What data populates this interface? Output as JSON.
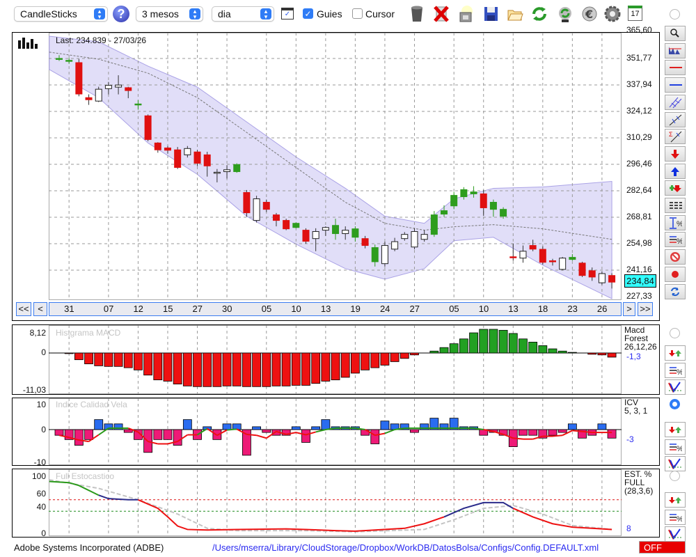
{
  "toolbar": {
    "chart_type": "CandleSticks",
    "period": "3 mesos",
    "interval": "dia",
    "guides_label": "Guies",
    "guides_checked": true,
    "cursor_label": "Cursor",
    "cursor_checked": false,
    "icons": [
      "trash-icon",
      "delete-icon",
      "print-icon",
      "save-icon",
      "open-folder-icon",
      "refresh-icon",
      "update-icon",
      "euro-icon",
      "settings-icon",
      "calendar-icon"
    ],
    "calendar_day": "17"
  },
  "main": {
    "last_label": "Last: 234.839 - 27/03/26",
    "y_ticks": [
      "365,60",
      "351,77",
      "337,94",
      "324,12",
      "310,29",
      "296,46",
      "282,64",
      "268,81",
      "254,98",
      "241,16",
      "227,33"
    ],
    "current_price": "234,84"
  },
  "nav": {
    "first": "<<",
    "prev": "<",
    "next": ">",
    "last": ">>"
  },
  "macd": {
    "title": "Histgrama MACD",
    "max": "8,12",
    "zero": "0",
    "min": "-11,03",
    "legend1": "Macd",
    "legend2": "Forest",
    "legend3": "26,12,26",
    "value": "-1,3"
  },
  "icv": {
    "title": "Indice Calidad Vela",
    "t1": "10",
    "t2": "0",
    "t3": "-10",
    "legend1": "ICV",
    "legend2": "5, 3, 1",
    "value": "-3"
  },
  "stoch": {
    "title": "Full Estocastico",
    "t1": "100",
    "t2": "60",
    "t3": "40",
    "t4": "0",
    "legend1": "EST. %",
    "legend2": "FULL",
    "legend3": "(28,3,6)",
    "value": "8"
  },
  "footer": {
    "company": "Adobe Systems Incorporated (ADBE)",
    "path": "/Users/mserra/Library/CloudStorage/Dropbox/WorkDB/DatosBolsa/Configs/Config.DEFAULT.xml",
    "off": "OFF"
  },
  "colors": {
    "up": "#2e9d1e",
    "down": "#e01010",
    "band": "#c9c3f2",
    "macd_neg": "#ee1111",
    "macd_pos": "#22a022",
    "icv_pos": "#2a6cf0",
    "icv_neg": "#ee1a77"
  },
  "chart_data": [
    {
      "type": "candlestick",
      "title": "CandleSticks",
      "ylim": [
        227.33,
        365.6
      ],
      "dates": [
        {
          "i": 1,
          "label": "31"
        },
        {
          "i": 5,
          "label": "07"
        },
        {
          "i": 8,
          "label": "12"
        },
        {
          "i": 11,
          "label": "15"
        },
        {
          "i": 14,
          "label": "27"
        },
        {
          "i": 17,
          "label": "30"
        },
        {
          "i": 21,
          "label": "05"
        },
        {
          "i": 24,
          "label": "10"
        },
        {
          "i": 27,
          "label": "13"
        },
        {
          "i": 30,
          "label": "19"
        },
        {
          "i": 33,
          "label": "24"
        },
        {
          "i": 36,
          "label": "27"
        },
        {
          "i": 40,
          "label": "05"
        },
        {
          "i": 43,
          "label": "10"
        },
        {
          "i": 46,
          "label": "13"
        },
        {
          "i": 49,
          "label": "18"
        },
        {
          "i": 52,
          "label": "23"
        },
        {
          "i": 55,
          "label": "26"
        }
      ],
      "candles": [
        [
          351.8,
          351.8,
          353.5,
          350.5,
          "g"
        ],
        [
          350.3,
          350.8,
          352,
          349,
          "g"
        ],
        [
          349.6,
          333.2,
          351.5,
          332,
          "r"
        ],
        [
          331.3,
          330.2,
          333,
          327.5,
          "r"
        ],
        [
          329.5,
          335.7,
          337,
          329,
          "w"
        ],
        [
          336,
          337.7,
          339.5,
          333,
          "w"
        ],
        [
          336.8,
          337.9,
          343,
          333,
          "w"
        ],
        [
          336.5,
          335,
          337,
          331,
          "r"
        ],
        [
          327.7,
          328,
          330,
          325,
          "g"
        ],
        [
          321.8,
          309.4,
          322.5,
          308.5,
          "r"
        ],
        [
          307.6,
          304,
          308,
          302.5,
          "r"
        ],
        [
          305,
          303.8,
          306,
          302,
          "r"
        ],
        [
          304,
          294.8,
          305.5,
          294,
          "r"
        ],
        [
          301.4,
          304.7,
          306,
          300,
          "w"
        ],
        [
          302.9,
          297,
          304,
          295.5,
          "r"
        ],
        [
          301.4,
          295.6,
          303,
          290,
          "r"
        ],
        [
          291.9,
          292.3,
          294,
          287,
          "w"
        ],
        [
          292.6,
          293.6,
          296,
          289,
          "w"
        ],
        [
          292.6,
          296.3,
          297,
          292,
          "g"
        ],
        [
          281.7,
          271.1,
          283,
          269,
          "r"
        ],
        [
          267.1,
          278.4,
          280,
          266,
          "w"
        ],
        [
          276.6,
          272.9,
          278,
          271.5,
          "r"
        ],
        [
          270,
          267.1,
          271,
          264,
          "r"
        ],
        [
          267.1,
          262.7,
          268,
          262,
          "r"
        ],
        [
          263.4,
          265.6,
          266,
          263,
          "g"
        ],
        [
          262,
          256.2,
          263,
          255,
          "r"
        ],
        [
          257.6,
          261.3,
          263,
          251,
          "w"
        ],
        [
          262,
          263.4,
          264,
          259,
          "w"
        ],
        [
          260.2,
          264.5,
          268,
          257,
          "g"
        ],
        [
          260.2,
          262,
          264,
          257,
          "w"
        ],
        [
          258.3,
          262.7,
          264,
          256,
          "g"
        ],
        [
          257.6,
          254,
          259,
          252.5,
          "r"
        ],
        [
          245.5,
          252.9,
          254.5,
          243,
          "g"
        ],
        [
          244.5,
          254,
          256,
          243,
          "w"
        ],
        [
          252.1,
          256,
          258,
          251,
          "w"
        ],
        [
          257.6,
          259.8,
          261,
          256.5,
          "w"
        ],
        [
          253.2,
          261.3,
          263,
          252,
          "w"
        ],
        [
          257.2,
          259.8,
          262,
          256,
          "w"
        ],
        [
          259.8,
          270,
          272,
          258.5,
          "g"
        ],
        [
          270.4,
          272.2,
          275,
          269,
          "g"
        ],
        [
          274.7,
          280.2,
          282,
          273,
          "g"
        ],
        [
          279.5,
          283.2,
          284.5,
          278,
          "g"
        ],
        [
          281,
          282,
          285,
          279,
          "g"
        ],
        [
          281,
          273.7,
          283,
          269.5,
          "r"
        ],
        [
          272.9,
          276.6,
          278,
          269,
          "g"
        ],
        [
          269.3,
          272.9,
          274,
          268,
          "g"
        ],
        [
          248.1,
          247.8,
          255,
          246,
          "r"
        ],
        [
          247.4,
          251,
          254,
          245,
          "w"
        ],
        [
          254,
          252.1,
          257,
          251,
          "r"
        ],
        [
          252,
          245.2,
          253.5,
          244,
          "r"
        ],
        [
          246,
          245.5,
          247,
          243.5,
          "r"
        ],
        [
          241.5,
          247.4,
          248,
          241,
          "w"
        ],
        [
          246.7,
          247.8,
          249.5,
          246,
          "g"
        ],
        [
          244.8,
          238.3,
          245.5,
          237.5,
          "r"
        ],
        [
          240.8,
          237.5,
          242.5,
          235.5,
          "r"
        ],
        [
          234.5,
          239.3,
          240.5,
          233.5,
          "w"
        ],
        [
          238.3,
          234.84,
          239.5,
          231.5,
          "r"
        ]
      ],
      "bands": [
        [
          -1,
          363.4,
          355.1,
          346
        ],
        [
          4,
          360.5,
          351.4,
          331.3
        ],
        [
          9,
          347.8,
          344.1,
          307.6
        ],
        [
          14,
          336.8,
          331.3,
          291.2
        ],
        [
          19,
          318.6,
          313.1,
          269.3
        ],
        [
          24,
          300.3,
          294.8,
          254.7
        ],
        [
          29,
          283.9,
          276.6,
          241.9
        ],
        [
          33,
          269.3,
          265.6,
          236.4
        ],
        [
          37,
          265.6,
          262,
          241.9
        ],
        [
          40,
          278.4,
          263.8,
          256.5
        ],
        [
          44,
          283.9,
          264.9,
          258.3
        ],
        [
          49,
          284.6,
          262.7,
          243.7
        ],
        [
          56,
          287.5,
          257.2,
          226.2
        ]
      ]
    },
    {
      "type": "bar",
      "title": "Histgrama MACD",
      "ylim": [
        -11.03,
        8.12
      ],
      "values": [
        0,
        -0.2,
        -2.1,
        -3.4,
        -4.0,
        -4.2,
        -4.2,
        -4.6,
        -5.3,
        -6.9,
        -8.4,
        -8.8,
        -9.7,
        -10.3,
        -10.5,
        -10.5,
        -10.5,
        -10.3,
        -10.3,
        -10.5,
        -10.5,
        -10.5,
        -10.3,
        -10.3,
        -10.1,
        -10.1,
        -9.5,
        -8.8,
        -8.4,
        -7.6,
        -6.3,
        -5.3,
        -4.6,
        -3.8,
        -2.7,
        -1.7,
        -0.6,
        0,
        0.6,
        1.7,
        2.9,
        4.4,
        6.3,
        7.4,
        7.4,
        7.1,
        6.1,
        4.4,
        3.4,
        2.3,
        1.3,
        0.6,
        0.2,
        0,
        -0.4,
        -0.6,
        -1.3
      ]
    },
    {
      "type": "bar",
      "title": "Indice Calidad Vela",
      "ylim": [
        -10,
        10
      ],
      "values": [
        -2,
        -3.5,
        -5.5,
        -3.5,
        3.5,
        2,
        2,
        -1,
        -3.5,
        -8,
        -3.5,
        -3.5,
        -5.5,
        3.5,
        -3.5,
        1,
        -3.5,
        2,
        2,
        -9,
        1,
        -1,
        -2,
        -2,
        1,
        -4.5,
        1,
        3.5,
        1,
        1,
        1,
        -2,
        -5,
        3,
        2,
        2,
        -1,
        2,
        4,
        2,
        4,
        1,
        1,
        -2,
        -1,
        -2,
        -6,
        -2,
        -2,
        -3,
        -2,
        -1,
        2,
        -3,
        -2,
        2,
        -3
      ]
    },
    {
      "type": "line",
      "title": "Full Estocastico",
      "ylim": [
        0,
        100
      ],
      "levels": [
        60,
        40
      ],
      "k": [
        [
          -1,
          92
        ],
        [
          1,
          90
        ],
        [
          2,
          85
        ],
        [
          4,
          68
        ],
        [
          5,
          62
        ],
        [
          7,
          60
        ],
        [
          8,
          60
        ],
        [
          10,
          45
        ],
        [
          11,
          30
        ],
        [
          12,
          14
        ],
        [
          13,
          8
        ],
        [
          15,
          7
        ],
        [
          18,
          8
        ],
        [
          23,
          9
        ],
        [
          25,
          8
        ],
        [
          28,
          6
        ],
        [
          30,
          5
        ],
        [
          32,
          7
        ],
        [
          35,
          10
        ],
        [
          37,
          18
        ],
        [
          39,
          30
        ],
        [
          41,
          45
        ],
        [
          43,
          55
        ],
        [
          45,
          55
        ],
        [
          46,
          45
        ],
        [
          48,
          30
        ],
        [
          50,
          18
        ],
        [
          52,
          12
        ],
        [
          54,
          10
        ],
        [
          56,
          8
        ]
      ],
      "k_segments": [
        {
          "from": -1,
          "to": 4,
          "color": "#2a9a1a"
        },
        {
          "from": 4,
          "to": 8,
          "color": "#2a2a8a"
        },
        {
          "from": 8,
          "to": 39,
          "color": "#ee1111"
        },
        {
          "from": 39,
          "to": 46,
          "color": "#2a2a8a"
        },
        {
          "from": 46,
          "to": 56,
          "color": "#ee1111"
        }
      ],
      "d": [
        [
          -1,
          95
        ],
        [
          4,
          80
        ],
        [
          8,
          60
        ],
        [
          12,
          35
        ],
        [
          15,
          10
        ],
        [
          18,
          6
        ],
        [
          25,
          6
        ],
        [
          30,
          4
        ],
        [
          37,
          8
        ],
        [
          40,
          25
        ],
        [
          43,
          45
        ],
        [
          46,
          50
        ],
        [
          49,
          35
        ],
        [
          52,
          15
        ],
        [
          56,
          8
        ]
      ]
    }
  ]
}
